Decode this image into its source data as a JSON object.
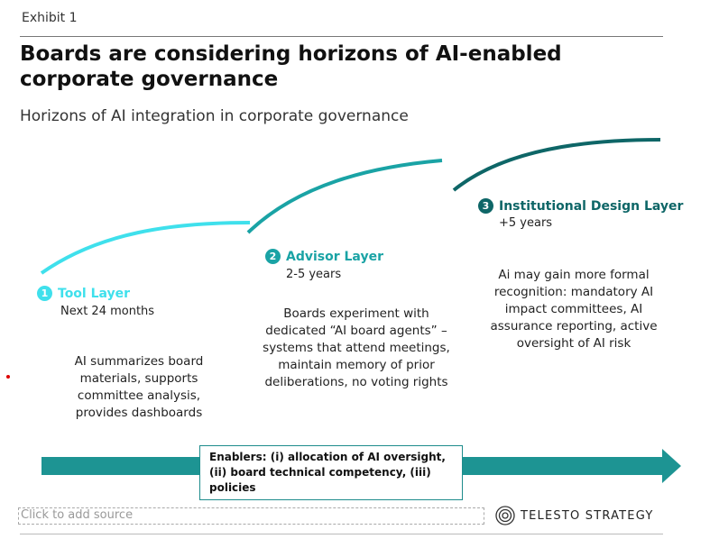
{
  "header": {
    "exhibit": "Exhibit 1",
    "title": "Boards are considering horizons of AI-enabled corporate governance",
    "subtitle": "Horizons of AI integration in corporate governance"
  },
  "layers": [
    {
      "number": "1",
      "name": "Tool Layer",
      "timeframe": "Next 24 months",
      "description": "AI summarizes board materials, supports committee analysis, provides dashboards",
      "color": "#3fe0ec"
    },
    {
      "number": "2",
      "name": "Advisor Layer",
      "timeframe": "2-5 years",
      "description": "Boards experiment with dedicated “AI board agents” – systems that attend meetings, maintain memory of prior deliberations, no voting rights",
      "color": "#1aa3a5"
    },
    {
      "number": "3",
      "name": "Institutional Design Layer",
      "timeframe": "+5 years",
      "description": "Ai may gain more formal recognition: mandatory AI impact committees, AI assurance reporting, active oversight of AI risk",
      "color": "#0e6667"
    }
  ],
  "enablers": "Enablers: (i) allocation of AI oversight, (ii) board technical competency, (iii) policies",
  "arrow_color": "#1d9493",
  "footer": {
    "source_placeholder": "Click to add source",
    "logo": "TELESTO STRATEGY",
    "logo_icon": "concentric-circles-logo-icon"
  }
}
